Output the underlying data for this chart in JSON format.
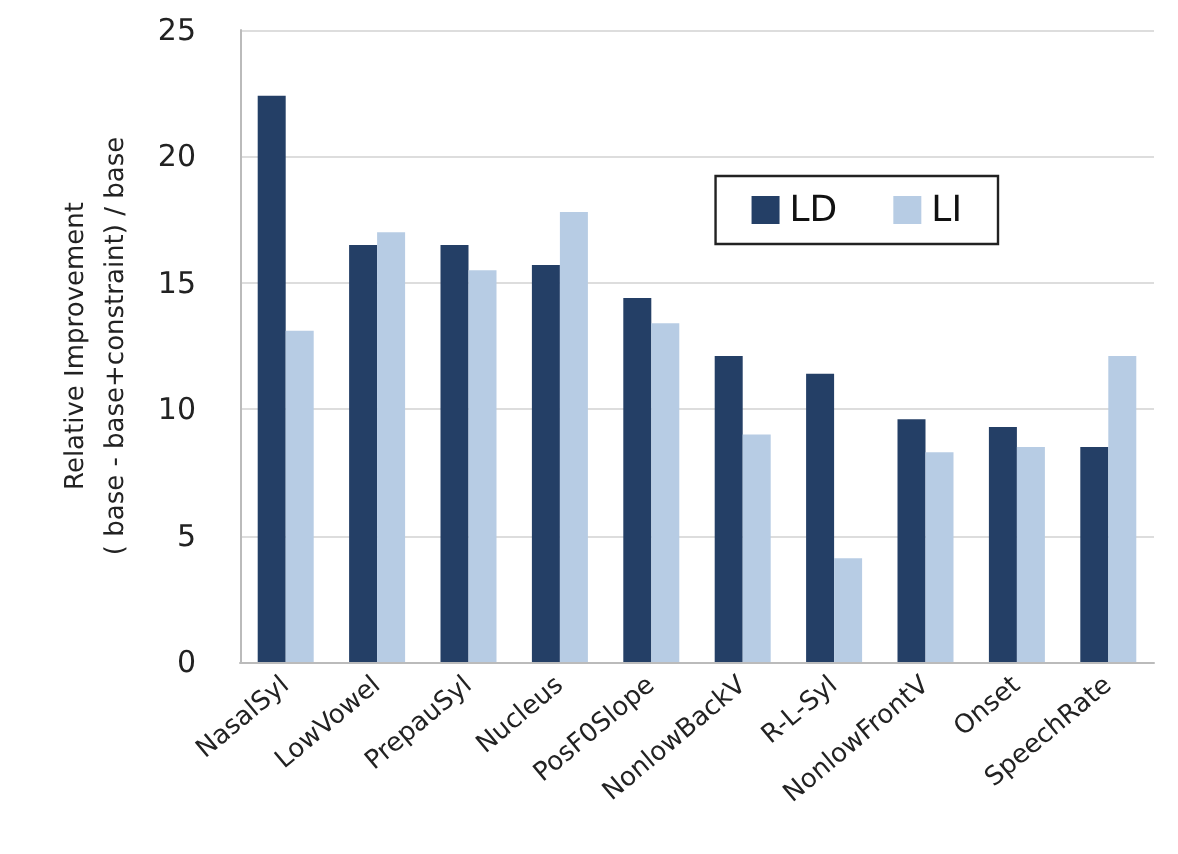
{
  "chart_data": {
    "type": "bar",
    "ylabel": "Relative Improvement\n( base - base+constraint) / base",
    "categories": [
      "NasalSyl",
      "LowVowel",
      "PrepauSyl",
      "Nucleus",
      "PosF0Slope",
      "NonlowBackV",
      "R-L-Syl",
      "NonlowFrontV",
      "Onset",
      "SpeechRate"
    ],
    "series": [
      {
        "name": "LD",
        "color": "#243f66",
        "values": [
          22.4,
          16.5,
          16.5,
          15.7,
          14.4,
          12.1,
          11.4,
          9.6,
          9.3,
          8.5
        ]
      },
      {
        "name": "LI",
        "color": "#b7cce4",
        "values": [
          13.1,
          17.0,
          15.5,
          17.8,
          13.4,
          9.0,
          4.1,
          8.3,
          8.5,
          12.1
        ]
      }
    ],
    "ylim": [
      0,
      25
    ],
    "yticks": [
      0,
      5,
      10,
      15,
      20,
      25
    ],
    "grid": "y",
    "legend": "top right"
  }
}
